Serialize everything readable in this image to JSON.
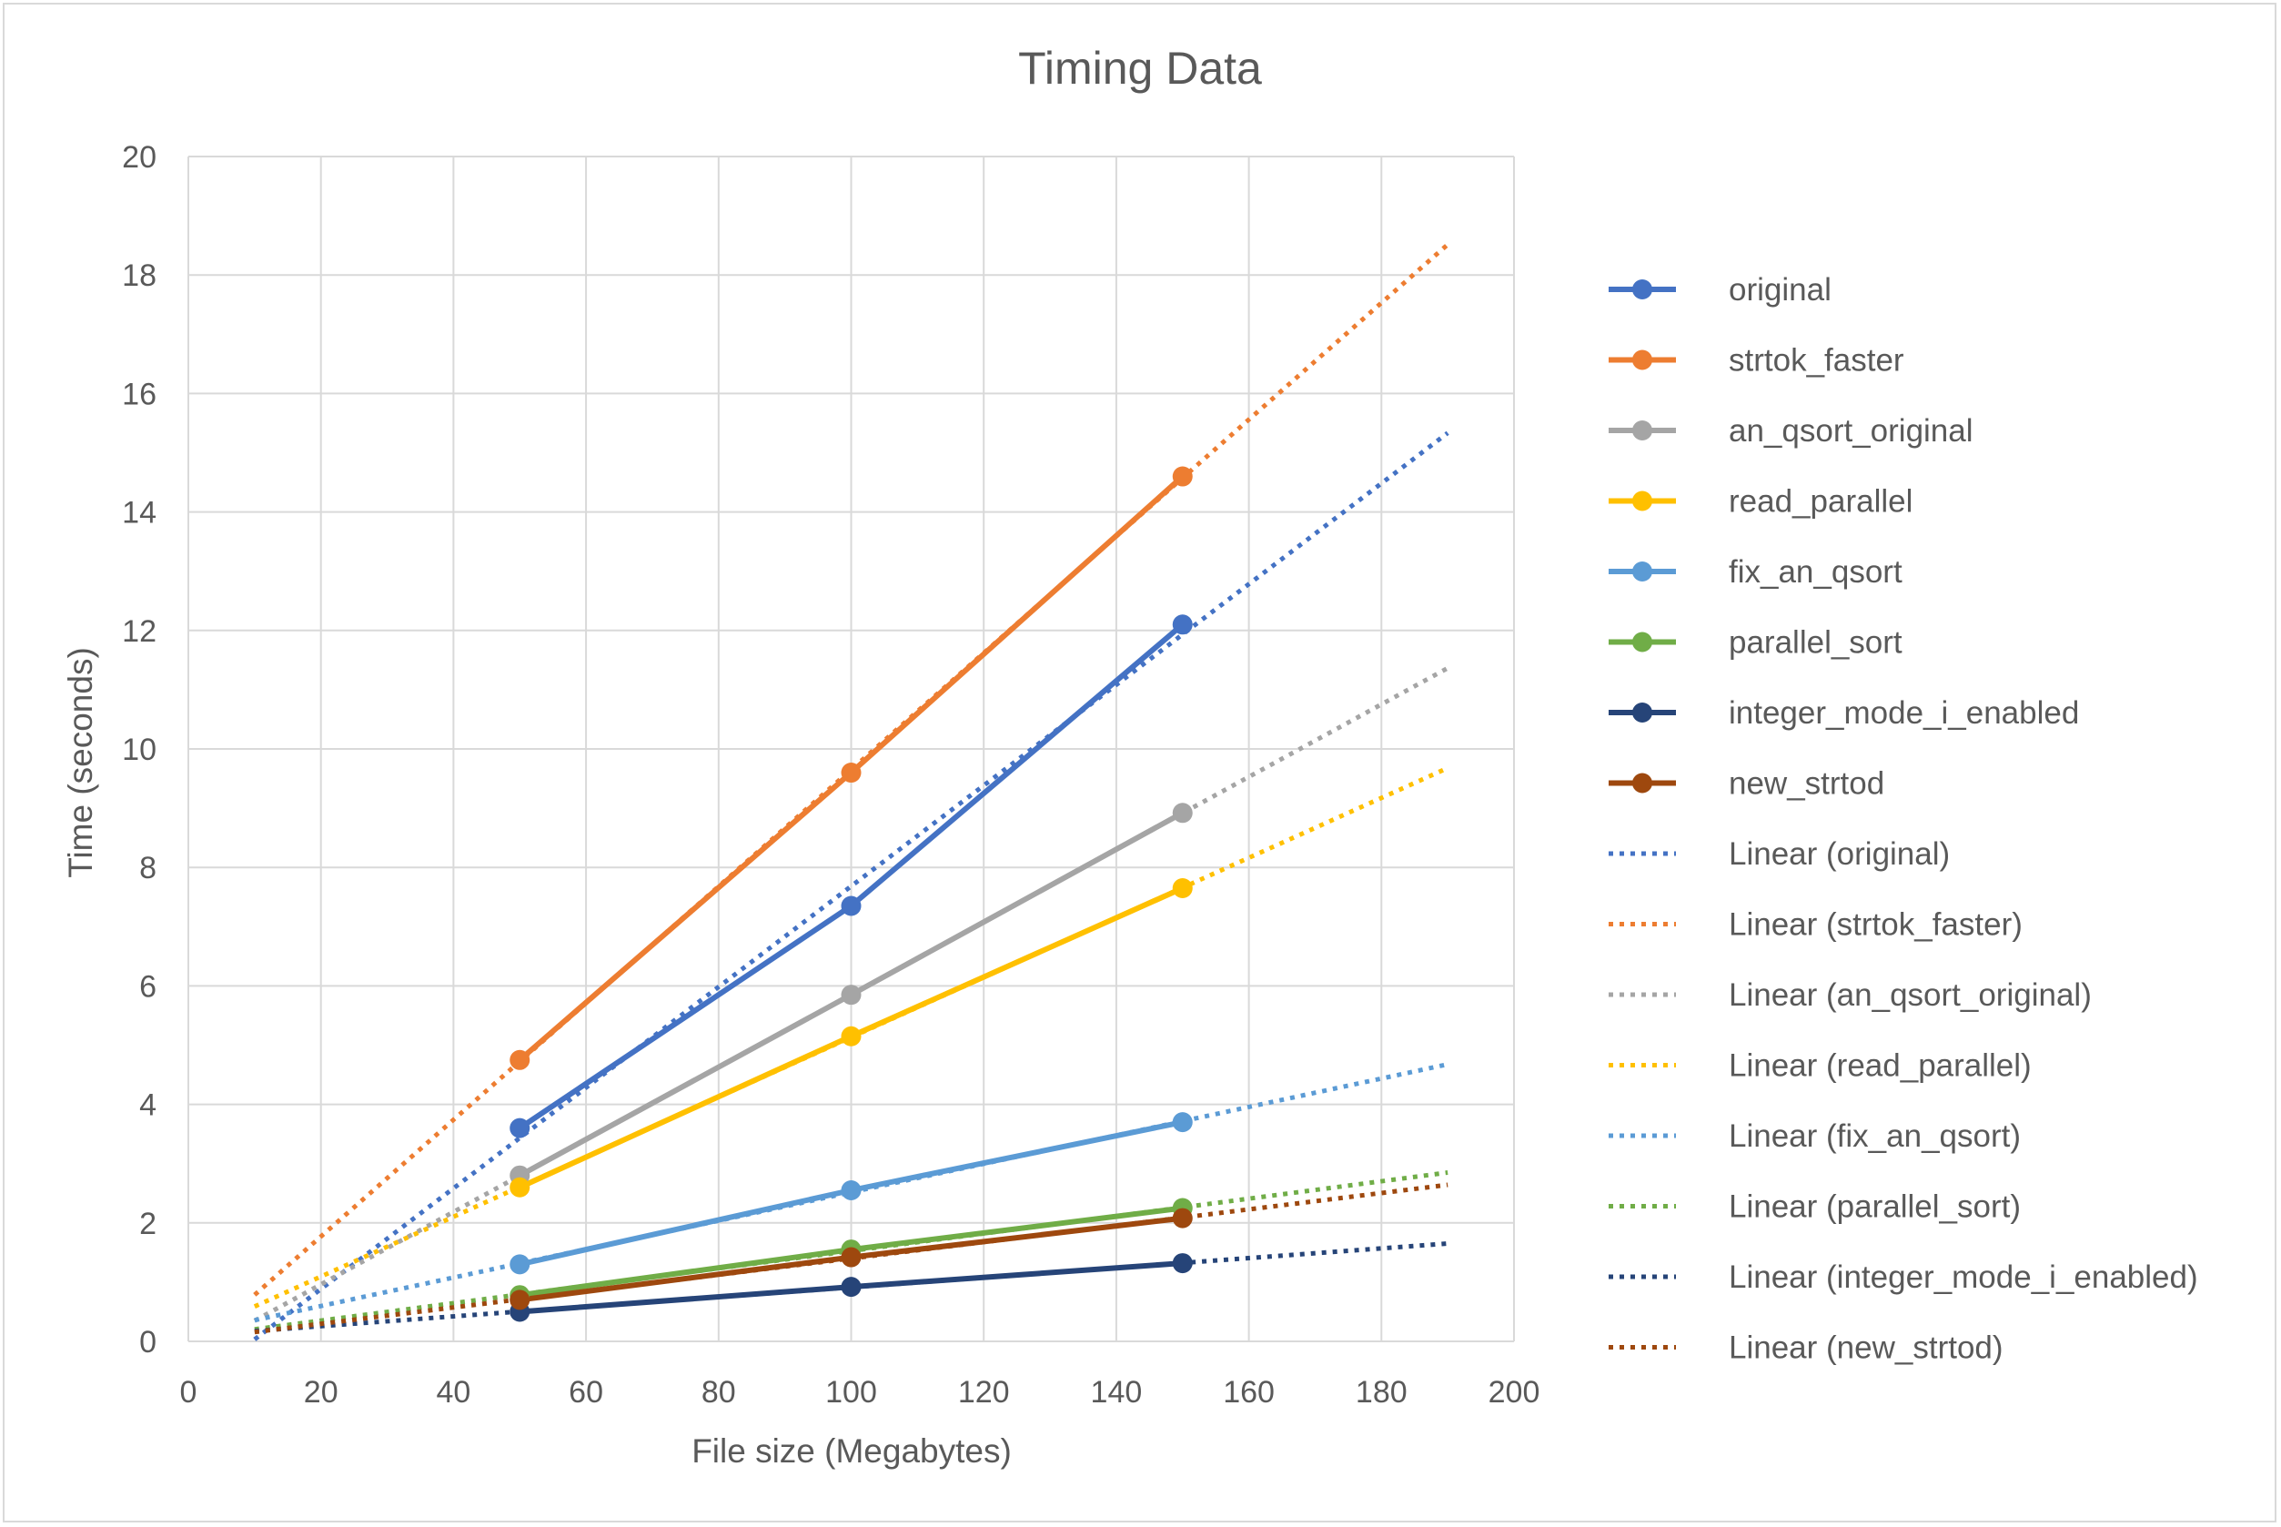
{
  "chart_data": {
    "type": "line",
    "title": "Timing Data",
    "xlabel": "File size (Megabytes)",
    "ylabel": "Time (seconds)",
    "xlim": [
      0,
      200
    ],
    "ylim": [
      0,
      20
    ],
    "x_ticks": [
      0,
      20,
      40,
      60,
      80,
      100,
      120,
      140,
      160,
      180,
      200
    ],
    "y_ticks": [
      0,
      2,
      4,
      6,
      8,
      10,
      12,
      14,
      16,
      18,
      20
    ],
    "grid": true,
    "legend_position": "right",
    "x": [
      50,
      100,
      150
    ],
    "series": [
      {
        "name": "original",
        "color": "#4472C4",
        "values": [
          3.6,
          7.35,
          12.1
        ]
      },
      {
        "name": "strtok_faster",
        "color": "#ED7D31",
        "values": [
          4.75,
          9.6,
          14.6
        ]
      },
      {
        "name": "an_qsort_original",
        "color": "#A5A5A5",
        "values": [
          2.8,
          5.85,
          8.92
        ]
      },
      {
        "name": "read_parallel",
        "color": "#FFC000",
        "values": [
          2.6,
          5.15,
          7.65
        ]
      },
      {
        "name": "fix_an_qsort",
        "color": "#5B9BD5",
        "values": [
          1.3,
          2.55,
          3.7
        ]
      },
      {
        "name": "parallel_sort",
        "color": "#70AD47",
        "values": [
          0.78,
          1.55,
          2.25
        ]
      },
      {
        "name": "integer_mode_i_enabled",
        "color": "#264478",
        "values": [
          0.5,
          0.92,
          1.32
        ]
      },
      {
        "name": "new_strtod",
        "color": "#9E480E",
        "values": [
          0.7,
          1.42,
          2.08
        ]
      }
    ],
    "trendlines": {
      "type": "linear",
      "x_range": [
        10,
        190
      ],
      "series": [
        {
          "name": "Linear (original)",
          "of": "original",
          "color": "#4472C4"
        },
        {
          "name": "Linear (strtok_faster)",
          "of": "strtok_faster",
          "color": "#ED7D31"
        },
        {
          "name": "Linear (an_qsort_original)",
          "of": "an_qsort_original",
          "color": "#A5A5A5"
        },
        {
          "name": "Linear (read_parallel)",
          "of": "read_parallel",
          "color": "#FFC000"
        },
        {
          "name": "Linear (fix_an_qsort)",
          "of": "fix_an_qsort",
          "color": "#5B9BD5"
        },
        {
          "name": "Linear (parallel_sort)",
          "of": "parallel_sort",
          "color": "#70AD47"
        },
        {
          "name": "Linear (integer_mode_i_enabled)",
          "of": "integer_mode_i_enabled",
          "color": "#264478"
        },
        {
          "name": "Linear (new_strtod)",
          "of": "new_strtod",
          "color": "#9E480E"
        }
      ]
    }
  }
}
